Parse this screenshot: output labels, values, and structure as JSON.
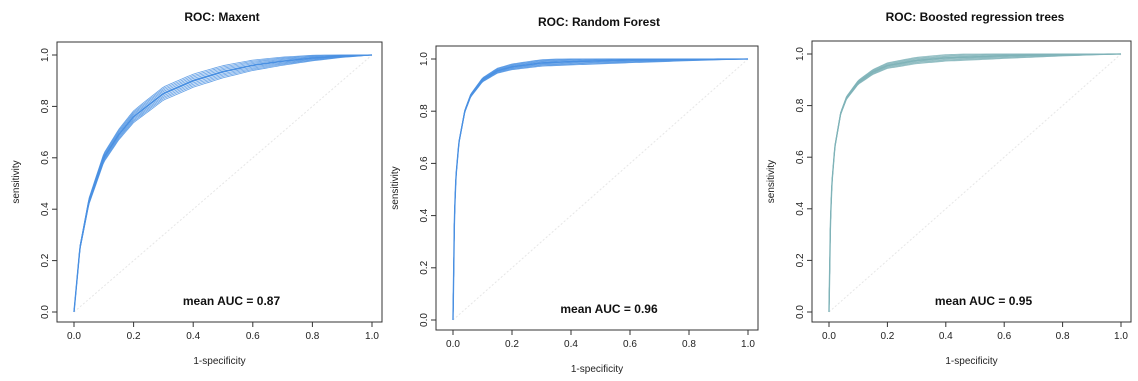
{
  "chart_data": [
    {
      "type": "line",
      "title": "ROC: Maxent",
      "xlabel": "1-specificity",
      "ylabel": "sensitivity",
      "xlim": [
        0,
        1
      ],
      "ylim": [
        0,
        1
      ],
      "xticks": [
        "0.0",
        "0.2",
        "0.4",
        "0.6",
        "0.8",
        "1.0"
      ],
      "yticks": [
        "0.0",
        "0.2",
        "0.4",
        "0.6",
        "0.8",
        "1.0"
      ],
      "annotation": "mean AUC = 0.87",
      "color": "#4a90e2",
      "replicates": 10,
      "x": [
        0,
        0.02,
        0.05,
        0.1,
        0.15,
        0.2,
        0.3,
        0.4,
        0.5,
        0.6,
        0.7,
        0.8,
        0.9,
        1.0
      ],
      "y": [
        0,
        0.25,
        0.43,
        0.6,
        0.69,
        0.76,
        0.85,
        0.9,
        0.935,
        0.96,
        0.976,
        0.988,
        0.996,
        1.0
      ]
    },
    {
      "type": "line",
      "title": "ROC: Random Forest",
      "xlabel": "1-specificity",
      "ylabel": "sensitivity",
      "xlim": [
        0,
        1
      ],
      "ylim": [
        0,
        1
      ],
      "xticks": [
        "0.0",
        "0.2",
        "0.4",
        "0.6",
        "0.8",
        "1.0"
      ],
      "yticks": [
        "0.0",
        "0.2",
        "0.4",
        "0.6",
        "0.8",
        "1.0"
      ],
      "annotation": "mean AUC = 0.96",
      "color": "#4a90e2",
      "replicates": 10,
      "x": [
        0,
        0.005,
        0.01,
        0.02,
        0.04,
        0.06,
        0.1,
        0.15,
        0.2,
        0.3,
        0.4,
        0.6,
        0.8,
        1.0
      ],
      "y": [
        0,
        0.4,
        0.55,
        0.68,
        0.8,
        0.86,
        0.92,
        0.955,
        0.97,
        0.985,
        0.99,
        0.996,
        0.999,
        1.0
      ]
    },
    {
      "type": "line",
      "title": "ROC: Boosted regression trees",
      "xlabel": "1-specificity",
      "ylabel": "sensitivity",
      "xlim": [
        0,
        1
      ],
      "ylim": [
        0,
        1
      ],
      "xticks": [
        "0.0",
        "0.2",
        "0.4",
        "0.6",
        "0.8",
        "1.0"
      ],
      "yticks": [
        "0.0",
        "0.2",
        "0.4",
        "0.6",
        "0.8",
        "1.0"
      ],
      "annotation": "mean AUC = 0.95",
      "color": "#7fb3b8",
      "replicates": 10,
      "x": [
        0,
        0.005,
        0.01,
        0.02,
        0.04,
        0.06,
        0.1,
        0.15,
        0.2,
        0.3,
        0.4,
        0.6,
        0.8,
        1.0
      ],
      "y": [
        0,
        0.35,
        0.5,
        0.64,
        0.77,
        0.83,
        0.89,
        0.93,
        0.955,
        0.975,
        0.985,
        0.993,
        0.998,
        1.0
      ]
    }
  ]
}
